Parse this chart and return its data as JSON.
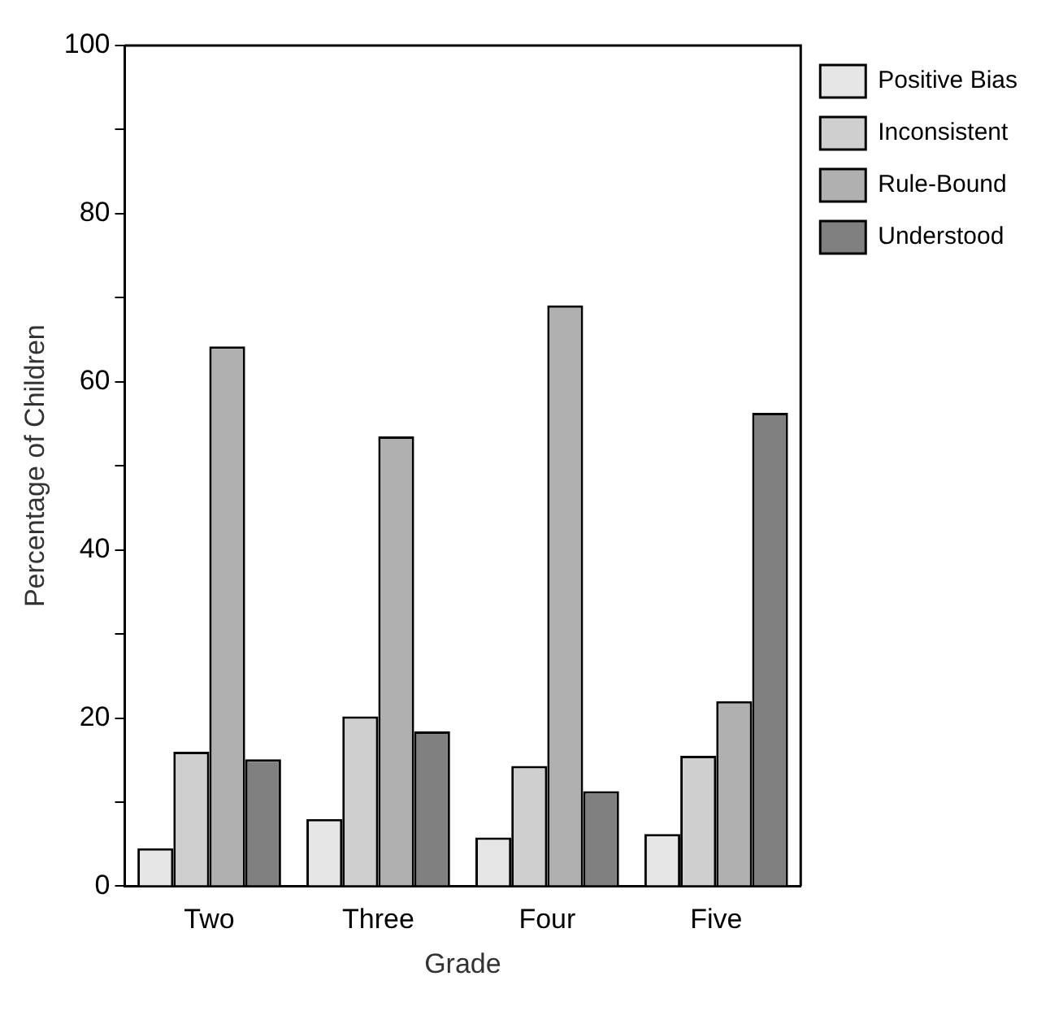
{
  "chart_data": {
    "type": "bar",
    "xlabel": "Grade",
    "ylabel": "Percentage of Children",
    "categories": [
      "Two",
      "Three",
      "Four",
      "Five"
    ],
    "series": [
      {
        "name": "Positive Bias",
        "color": "#e6e6e6",
        "values": [
          4.5,
          8,
          5.8,
          6.2
        ]
      },
      {
        "name": "Inconsistent",
        "color": "#cfcfcf",
        "values": [
          16,
          20.2,
          14.3,
          15.5
        ]
      },
      {
        "name": "Rule-Bound",
        "color": "#b0b0b0",
        "values": [
          64.2,
          53.5,
          69.1,
          22
        ]
      },
      {
        "name": "Understood",
        "color": "#808080",
        "values": [
          15.1,
          18.4,
          11.3,
          56.3
        ]
      }
    ],
    "ylim": [
      0,
      100
    ],
    "yticks": [
      0,
      {
        "value": 10,
        "label": null
      },
      20,
      {
        "value": 30,
        "label": null
      },
      40,
      {
        "value": 50,
        "label": null
      },
      60,
      {
        "value": 70,
        "label": null
      },
      80,
      {
        "value": 90,
        "label": null
      },
      100
    ],
    "grid": false,
    "legend": "right"
  }
}
